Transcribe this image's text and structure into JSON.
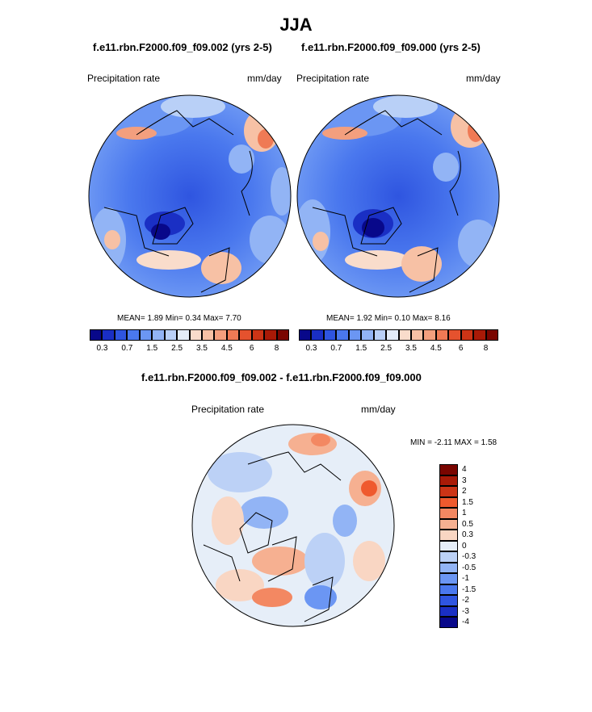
{
  "figure": {
    "title": "JJA",
    "panel1_title": "f.e11.rbn.F2000.f09_f09.002 (yrs 2-5)",
    "panel2_title": "f.e11.rbn.F2000.f09_f09.000 (yrs 2-5)",
    "diff_title": "f.e11.rbn.F2000.f09_f09.002 - f.e11.rbn.F2000.f09_f09.000"
  },
  "panel1": {
    "variable": "Precipitation rate",
    "units": "mm/day",
    "stats": {
      "mean_label": "MEAN=",
      "mean": "1.89",
      "min_label": "Min=",
      "min": "0.34",
      "max_label": "Max=",
      "max": "7.70"
    }
  },
  "panel2": {
    "variable": "Precipitation rate",
    "units": "mm/day",
    "stats": {
      "mean_label": "MEAN=",
      "mean": "1.92",
      "min_label": "Min=",
      "min": "0.10",
      "max_label": "Max=",
      "max": "8.16"
    }
  },
  "diff": {
    "variable": "Precipitation rate",
    "units": "mm/day",
    "minmax": "MIN =  -2.11 MAX =   1.58"
  },
  "abs_colorbar": {
    "colors": [
      "#08088a",
      "#1a2fc4",
      "#2f55e0",
      "#4a78ee",
      "#6b96f3",
      "#92b4f5",
      "#b9d0f7",
      "#e3ecf8",
      "#f9dccb",
      "#f7c1a5",
      "#f39f7e",
      "#ef7a55",
      "#e5522e",
      "#cc3416",
      "#a91a07",
      "#7a0500"
    ],
    "labels": [
      "0.3",
      "0.7",
      "1.5",
      "2.5",
      "3.5",
      "4.5",
      "6",
      "8"
    ]
  },
  "diff_colorbar": {
    "colors": [
      "#7a0500",
      "#a91a07",
      "#cc3416",
      "#ef5a2e",
      "#f38862",
      "#f6b091",
      "#f9d6c3",
      "#e6eef8",
      "#bcd1f6",
      "#92b4f5",
      "#6b96f3",
      "#4a78ee",
      "#2f55e0",
      "#1a2fc4",
      "#08088a"
    ],
    "labels": [
      "4",
      "3",
      "2",
      "1.5",
      "1",
      "0.5",
      "0.3",
      "0",
      "-0.3",
      "-0.5",
      "-1",
      "-1.5",
      "-2",
      "-3",
      "-4"
    ]
  }
}
